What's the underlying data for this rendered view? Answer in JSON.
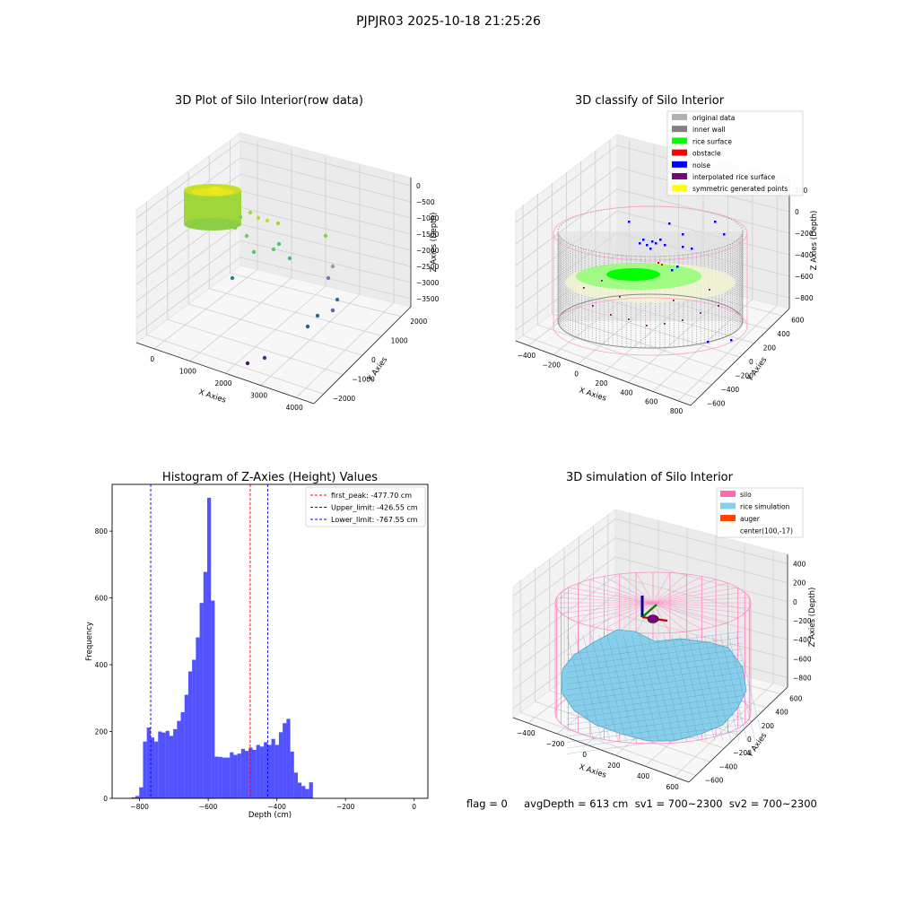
{
  "suptitle": "PJPJR03 2025-10-18 21:25:26",
  "footer": "flag = 0     avgDepth = 613 cm  sv1 = 700~2300  sv2 = 700~2300",
  "colors": {
    "histogram": "#0000ff",
    "first_peak": "#ff0000",
    "limits": "#0000ff",
    "silo": "#ff69b4",
    "rice_simulation": "#87ceeb",
    "auger": "#ff4500"
  },
  "chart_data": [
    {
      "type": "scatter",
      "subtype": "3d",
      "title": "3D Plot of Silo Interior(row data)",
      "xlabel": "X Axies",
      "ylabel": "Y Axies",
      "zlabel": "Z Axies (Depth)",
      "x_ticks": [
        "0",
        "1000",
        "2000",
        "3000",
        "4000"
      ],
      "y_ticks": [
        "−2000",
        "−1000",
        "0",
        "1000",
        "2000"
      ],
      "z_ticks": [
        "0",
        "−500",
        "−1000",
        "−1500",
        "−2000",
        "−2500",
        "−3000",
        "−3500"
      ],
      "colormap": "viridis",
      "grid": true
    },
    {
      "type": "scatter",
      "subtype": "3d",
      "title": "3D classify of Silo Interior",
      "xlabel": "X Axies",
      "ylabel": "Y Axies",
      "zlabel": "Z Axies (Depth)",
      "x_ticks": [
        "−400",
        "−200",
        "0",
        "200",
        "400",
        "600",
        "800"
      ],
      "y_ticks": [
        "−600",
        "−400",
        "−200",
        "0",
        "200",
        "400",
        "600"
      ],
      "z_ticks": [
        "200",
        "0",
        "−200",
        "−400",
        "−600",
        "−800"
      ],
      "legend_position": "top-right",
      "legend": [
        {
          "label": "original data",
          "color": "#b0b0b0"
        },
        {
          "label": "inner wall",
          "color": "#808080"
        },
        {
          "label": "rice surface",
          "color": "#00ff00"
        },
        {
          "label": "obstacle",
          "color": "#ff0000"
        },
        {
          "label": "noise",
          "color": "#0000ff"
        },
        {
          "label": "interpolated rice surface",
          "color": "#800080"
        },
        {
          "label": "symmetric generated points",
          "color": "#ffff00"
        }
      ],
      "grid": true
    },
    {
      "type": "bar",
      "subtype": "histogram",
      "title": "Histogram of Z-Axies (Height) Values",
      "xlabel": "Depth (cm)",
      "ylabel": "Frequency",
      "xlim": [
        -880,
        40
      ],
      "ylim": [
        0,
        940
      ],
      "x_ticks": [
        -800,
        -600,
        -400,
        -200,
        0
      ],
      "x_tick_labels": [
        "−800",
        "−600",
        "−400",
        "−200",
        "0"
      ],
      "y_ticks": [
        0,
        200,
        400,
        600,
        800
      ],
      "bin_width": 11,
      "bin_start": -845,
      "values": [
        0,
        0,
        3,
        7,
        33,
        170,
        212,
        182,
        170,
        200,
        197,
        202,
        187,
        207,
        232,
        258,
        310,
        380,
        415,
        482,
        585,
        678,
        900,
        592,
        125,
        124,
        122,
        122,
        138,
        130,
        134,
        148,
        142,
        152,
        145,
        160,
        155,
        168,
        160,
        178,
        160,
        198,
        225,
        238,
        140,
        77,
        47,
        37,
        28,
        48
      ],
      "vlines": [
        {
          "label": "first_peak: -477.70 cm",
          "x": -477.7,
          "color": "#ff0000"
        },
        {
          "label": "Upper_limit: -426.55 cm",
          "x": -426.55,
          "color": "#0000ff"
        },
        {
          "label": "Lower_limit: -767.55 cm",
          "x": -767.55,
          "color": "#0000ff"
        }
      ],
      "legend_position": "top-right"
    },
    {
      "type": "surface",
      "subtype": "3d",
      "title": "3D simulation of Silo Interior",
      "xlabel": "X Axies",
      "ylabel": "Y Axies",
      "zlabel": "Z Axies (Depth)",
      "x_ticks": [
        "−400",
        "−200",
        "0",
        "200",
        "400",
        "600"
      ],
      "y_ticks": [
        "−600",
        "−400",
        "−200",
        "0",
        "200",
        "400",
        "600"
      ],
      "z_ticks": [
        "400",
        "200",
        "0",
        "−200",
        "−400",
        "−600",
        "−800"
      ],
      "legend_position": "top-right",
      "legend": [
        {
          "label": "silo",
          "color": "#ff69b4"
        },
        {
          "label": "rice simulation",
          "color": "#87ceeb"
        },
        {
          "label": "auger",
          "color": "#ff4500"
        },
        {
          "label": "center(100,-17)",
          "color": ""
        }
      ],
      "grid": true
    }
  ]
}
